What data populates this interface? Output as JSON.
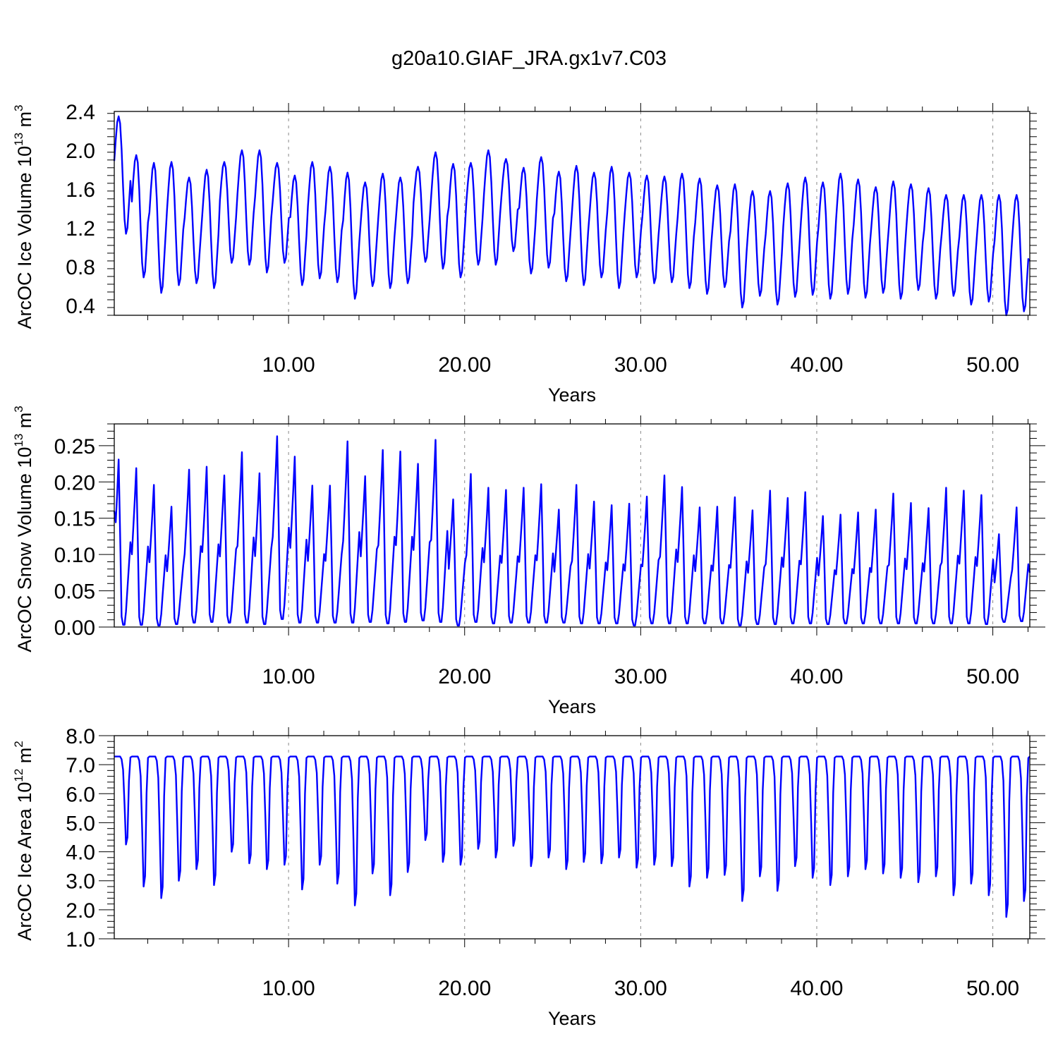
{
  "figure": {
    "title": "g20a10.GIAF_JRA.gx1v7.C03",
    "colors": {
      "series": "#0000ff",
      "axes": "#000000",
      "gridlines": "#888888"
    }
  },
  "chart_data": [
    {
      "type": "line",
      "id": "ice-volume",
      "xlabel": "Years",
      "ylabel": {
        "main": "ArcOC Ice Volume 10",
        "sup": "13",
        "unit": " m",
        "unit_sup": "3"
      },
      "xlim": [
        0.1,
        52.1
      ],
      "ylim": [
        0.3,
        2.4
      ],
      "yticks": [
        0.4,
        0.8,
        1.2,
        1.6,
        2.0,
        2.4
      ],
      "ytick_labels": [
        "0.4",
        "0.8",
        "1.2",
        "1.6",
        "2.0",
        "2.4"
      ],
      "xticks": [
        10,
        20,
        30,
        40,
        50
      ],
      "xtick_labels": [
        "10.00",
        "20.00",
        "30.00",
        "40.00",
        "50.00"
      ],
      "grid_x": "dashed at labeled ticks",
      "cycle": "monthly seasonal cycle, one peak per year",
      "x_start": 0.1,
      "annual_max": [
        2.35,
        1.95,
        1.87,
        1.88,
        1.72,
        1.8,
        1.88,
        2.0,
        2.0,
        1.87,
        1.74,
        1.88,
        1.83,
        1.77,
        1.67,
        1.76,
        1.72,
        1.83,
        1.98,
        1.86,
        1.87,
        2.0,
        1.91,
        1.82,
        1.93,
        1.78,
        1.84,
        1.77,
        1.83,
        1.77,
        1.74,
        1.73,
        1.76,
        1.71,
        1.64,
        1.65,
        1.58,
        1.58,
        1.66,
        1.72,
        1.67,
        1.76,
        1.7,
        1.62,
        1.68,
        1.65,
        1.61,
        1.54,
        1.54,
        1.54,
        1.54,
        1.54
      ],
      "annual_min": [
        1.14,
        0.69,
        0.53,
        0.61,
        0.63,
        0.58,
        0.84,
        0.82,
        0.74,
        0.84,
        0.61,
        0.68,
        0.64,
        0.47,
        0.6,
        0.58,
        0.63,
        0.85,
        0.78,
        0.69,
        0.82,
        0.82,
        0.96,
        0.73,
        0.79,
        0.65,
        0.61,
        0.69,
        0.58,
        0.69,
        0.63,
        0.64,
        0.58,
        0.52,
        0.59,
        0.38,
        0.5,
        0.41,
        0.49,
        0.51,
        0.47,
        0.52,
        0.48,
        0.53,
        0.47,
        0.56,
        0.47,
        0.5,
        0.41,
        0.44,
        0.3,
        0.34
      ],
      "end_value": 0.86
    },
    {
      "type": "line",
      "id": "snow-volume",
      "xlabel": "Years",
      "ylabel": {
        "main": "ArcOC Snow Volume 10",
        "sup": "13",
        "unit": " m",
        "unit_sup": "3"
      },
      "xlim": [
        0.1,
        52.1
      ],
      "ylim": [
        0.0,
        0.28
      ],
      "yticks": [
        0.0,
        0.05,
        0.1,
        0.15,
        0.2,
        0.25
      ],
      "ytick_labels": [
        "0.00",
        "0.05",
        "0.10",
        "0.15",
        "0.20",
        "0.25"
      ],
      "xticks": [
        10,
        20,
        30,
        40,
        50
      ],
      "xtick_labels": [
        "10.00",
        "20.00",
        "30.00",
        "40.00",
        "50.00"
      ],
      "grid_x": "dashed at labeled ticks",
      "cycle": "monthly seasonal cycle, one peak per year",
      "x_start": 0.1,
      "start_value": 0.16,
      "annual_max": [
        0.231,
        0.219,
        0.196,
        0.166,
        0.217,
        0.221,
        0.209,
        0.241,
        0.212,
        0.263,
        0.235,
        0.195,
        0.195,
        0.256,
        0.208,
        0.244,
        0.242,
        0.225,
        0.258,
        0.176,
        0.211,
        0.192,
        0.189,
        0.192,
        0.197,
        0.162,
        0.196,
        0.173,
        0.168,
        0.17,
        0.18,
        0.209,
        0.193,
        0.165,
        0.166,
        0.179,
        0.161,
        0.188,
        0.178,
        0.186,
        0.153,
        0.155,
        0.158,
        0.162,
        0.184,
        0.171,
        0.164,
        0.192,
        0.188,
        0.182,
        0.128,
        0.165
      ],
      "annual_min": [
        0.003,
        0.003,
        0.002,
        0.004,
        0.006,
        0.007,
        0.006,
        0.006,
        0.004,
        0.011,
        0.006,
        0.006,
        0.006,
        0.006,
        0.007,
        0.005,
        0.007,
        0.009,
        0.007,
        0.002,
        0.007,
        0.005,
        0.006,
        0.006,
        0.006,
        0.006,
        0.005,
        0.005,
        0.005,
        0.002,
        0.005,
        0.005,
        0.005,
        0.005,
        0.005,
        0.002,
        0.004,
        0.004,
        0.005,
        0.005,
        0.004,
        0.005,
        0.005,
        0.005,
        0.005,
        0.005,
        0.005,
        0.005,
        0.005,
        0.004,
        0.007,
        0.008
      ],
      "end_value": 0.075
    },
    {
      "type": "line",
      "id": "ice-area",
      "xlabel": "Years",
      "ylabel": {
        "main": "ArcOC Ice Area 10",
        "sup": "12",
        "unit": " m",
        "unit_sup": "2"
      },
      "xlim": [
        0.1,
        52.1
      ],
      "ylim": [
        1.0,
        8.0
      ],
      "yticks": [
        1.0,
        2.0,
        3.0,
        4.0,
        5.0,
        6.0,
        7.0,
        8.0
      ],
      "ytick_labels": [
        "1.0",
        "2.0",
        "3.0",
        "4.0",
        "5.0",
        "6.0",
        "7.0",
        "8.0"
      ],
      "xticks": [
        10,
        20,
        30,
        40,
        50
      ],
      "xtick_labels": [
        "10.00",
        "20.00",
        "30.00",
        "40.00",
        "50.00"
      ],
      "grid_x": "dashed at labeled ticks",
      "cycle": "monthly seasonal cycle, flat winter plateau",
      "x_start": 0.1,
      "plateau": 7.28,
      "annual_min": [
        4.25,
        2.8,
        2.4,
        3.0,
        3.4,
        2.85,
        4.0,
        3.6,
        3.4,
        3.55,
        2.7,
        3.55,
        2.9,
        2.15,
        3.25,
        2.5,
        3.3,
        4.4,
        3.65,
        3.55,
        4.1,
        3.8,
        4.2,
        3.5,
        3.8,
        3.4,
        3.65,
        3.6,
        3.8,
        3.45,
        3.55,
        3.5,
        2.8,
        3.1,
        3.2,
        2.3,
        3.15,
        2.65,
        3.5,
        3.1,
        2.85,
        3.15,
        3.4,
        3.25,
        3.1,
        2.95,
        3.15,
        2.5,
        2.9,
        2.5,
        1.75,
        2.3
      ],
      "end_value": 7.28
    }
  ]
}
